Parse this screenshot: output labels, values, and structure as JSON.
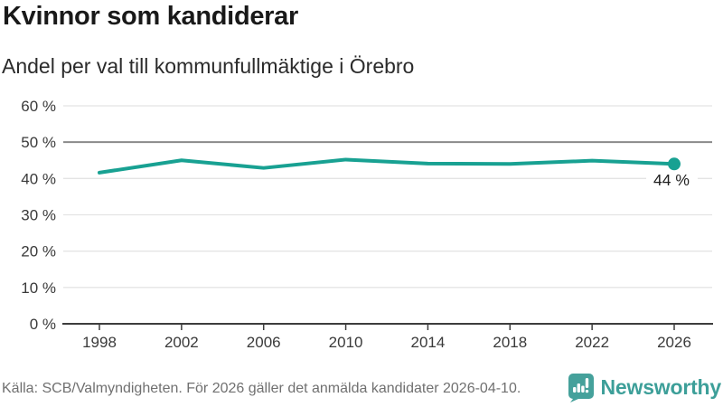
{
  "header": {
    "title": "Kvinnor som kandiderar",
    "subtitle": "Andel per val till kommunfullmäktige i Örebro"
  },
  "chart_data": {
    "type": "line",
    "title": "Kvinnor som kandiderar",
    "subtitle": "Andel per val till kommunfullmäktige i Örebro",
    "x": [
      "1998",
      "2002",
      "2006",
      "2010",
      "2014",
      "2018",
      "2022",
      "2026"
    ],
    "values": [
      41.6,
      45.0,
      42.9,
      45.2,
      44.1,
      44.0,
      44.9,
      44.0
    ],
    "unit": "%",
    "ylim": [
      0,
      60
    ],
    "yticks": {
      "values": [
        0,
        10,
        20,
        30,
        40,
        50,
        60
      ],
      "labels": [
        "0 %",
        "10 %",
        "20 %",
        "30 %",
        "40 %",
        "50 %",
        "60 %"
      ]
    },
    "reference_line_value": 50,
    "end_point_label": "44 %",
    "grid": true,
    "legend_position": "none"
  },
  "footer": {
    "source": "Källa: SCB/Valmyndigheten. För 2026 gäller det anmälda kandidater 2026-04-10.",
    "brand": "Newsworthy"
  },
  "colors": {
    "line": "#18a192",
    "end_label_text": "#1f1f1f",
    "gridline": "#e4e4e4",
    "reference_line": "#8a8a8a",
    "axis": "#3d3d3d",
    "tick_text": "#3a3a3a",
    "title_text": "#191919",
    "subtitle_text": "#2b2b2b",
    "source_text": "#707070",
    "brand_teal": "#45a19b",
    "background": "#ffffff"
  }
}
